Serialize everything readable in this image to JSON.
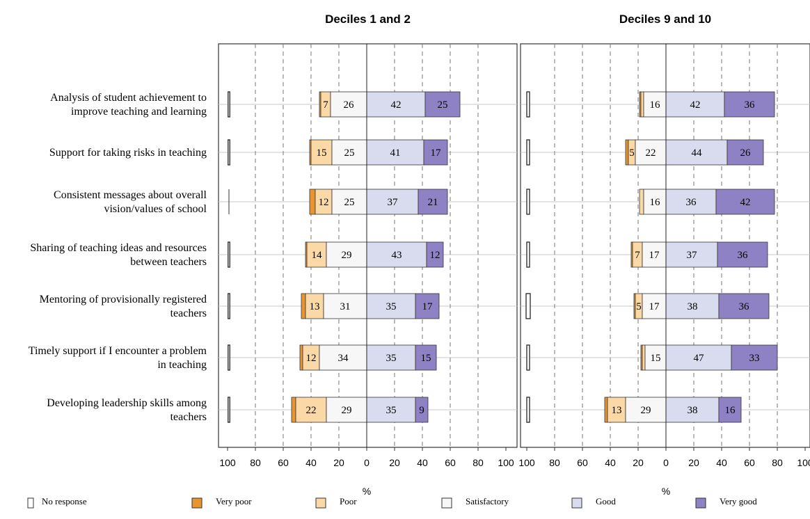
{
  "chart_data": {
    "type": "bar",
    "subtype": "diverging-stacked-horizontal",
    "categories": [
      [
        "Analysis of student achievement to",
        "improve teaching and learning"
      ],
      [
        "Support for taking risks in teaching"
      ],
      [
        "Consistent messages about overall",
        "vision/values of school"
      ],
      [
        "Sharing of teaching ideas and resources",
        "between teachers"
      ],
      [
        "Mentoring of provisionally registered",
        "teachers"
      ],
      [
        "Timely support if I encounter a problem",
        "in teaching"
      ],
      [
        "Developing leadership skills among",
        "teachers"
      ]
    ],
    "xlabel": "%",
    "xticks": [
      "100",
      "80",
      "60",
      "40",
      "20",
      "0",
      "20",
      "40",
      "60",
      "80",
      "100"
    ],
    "xlim": [
      -100,
      100
    ],
    "grid": "vertical dashed",
    "legend_position": "bottom",
    "series_order": [
      "No response",
      "Very poor",
      "Poor",
      "Satisfactory",
      "Good",
      "Very good"
    ],
    "colors": {
      "No response": "#ffffff",
      "Very poor": "#e8952f",
      "Poor": "#fbd9a6",
      "Satisfactory": "#f7f7f7",
      "Good": "#d9dcee",
      "Very good": "#8f82c4",
      "border": "#333333",
      "grid": "#777777",
      "rowline": "#c8c8c8"
    },
    "panels": [
      {
        "title": "Deciles 1 and 2",
        "no_response": [
          1,
          1,
          0,
          1,
          1,
          1,
          1
        ],
        "very_poor": [
          1,
          1,
          4,
          1,
          3,
          2,
          3
        ],
        "poor": [
          7,
          15,
          12,
          14,
          13,
          12,
          22
        ],
        "satisfactory": [
          26,
          25,
          25,
          29,
          31,
          34,
          29
        ],
        "good": [
          42,
          41,
          37,
          43,
          35,
          35,
          35
        ],
        "very_good": [
          25,
          17,
          21,
          12,
          17,
          15,
          9
        ],
        "labels": {
          "poor": [
            "7",
            "15",
            "12",
            "14",
            "13",
            "12",
            "22"
          ],
          "satisfactory": [
            "26",
            "25",
            "25",
            "29",
            "31",
            "34",
            "29"
          ],
          "good": [
            "42",
            "41",
            "37",
            "43",
            "35",
            "35",
            "35"
          ],
          "very_good": [
            "25",
            "17",
            "21",
            "12",
            "17",
            "15",
            "9"
          ]
        }
      },
      {
        "title": "Deciles 9 and 10",
        "no_response": [
          2,
          2,
          2,
          2,
          3,
          2,
          2
        ],
        "very_poor": [
          1,
          2,
          0,
          1,
          1,
          1,
          2
        ],
        "poor": [
          2,
          5,
          3,
          7,
          5,
          2,
          13
        ],
        "satisfactory": [
          16,
          22,
          16,
          17,
          17,
          15,
          29
        ],
        "good": [
          42,
          44,
          36,
          37,
          38,
          47,
          38
        ],
        "very_good": [
          36,
          26,
          42,
          36,
          36,
          33,
          16
        ],
        "labels": {
          "poor": [
            "",
            "5",
            "",
            "7",
            "5",
            "",
            "13"
          ],
          "satisfactory": [
            "16",
            "22",
            "16",
            "17",
            "17",
            "15",
            "29"
          ],
          "good": [
            "42",
            "44",
            "36",
            "37",
            "38",
            "47",
            "38"
          ],
          "very_good": [
            "36",
            "26",
            "42",
            "36",
            "36",
            "33",
            "16"
          ]
        }
      }
    ],
    "legend": [
      "No response",
      "Very poor",
      "Poor",
      "Satisfactory",
      "Good",
      "Very good"
    ]
  }
}
